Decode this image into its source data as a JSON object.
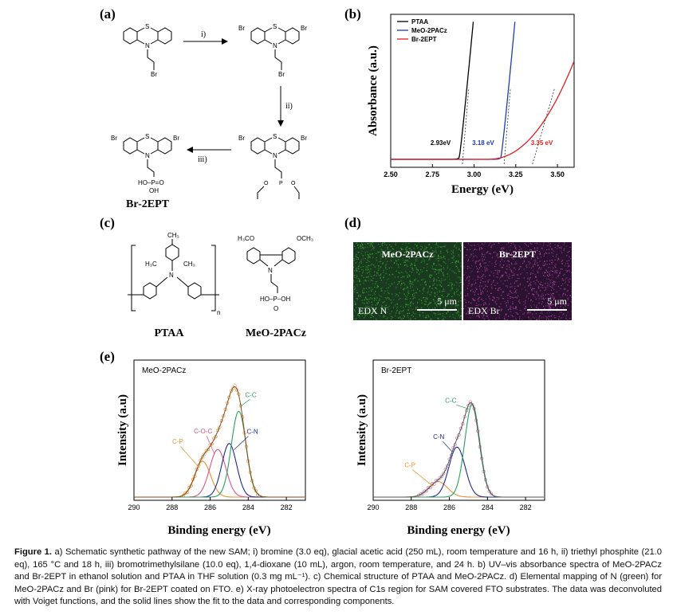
{
  "panels": {
    "a": "(a)",
    "b": "(b)",
    "c": "(c)",
    "d": "(d)",
    "e": "(e)"
  },
  "scheme": {
    "step1": "i)",
    "step2": "ii)",
    "step3": "iii)",
    "atom_s": "S",
    "atom_n": "N",
    "atom_br": "Br",
    "atom_o": "O",
    "atom_p": "P",
    "phosphonic_acid": "HO–P=O",
    "phosphonic_oh": "OH",
    "product_name": "Br-2EPT"
  },
  "structures": {
    "ptaa_name": "PTAA",
    "ptaa_ch3_top": "CH₃",
    "ptaa_h3c": "H₃C",
    "ptaa_ch3_right": "CH₃",
    "ptaa_n": "N",
    "ptaa_n_sub": "n",
    "meo_name": "MeO-2PACz",
    "meo_h3co": "H₃CO",
    "meo_och3": "OCH₃",
    "meo_n": "N",
    "meo_acid": "HO–P–OH",
    "meo_o": "O"
  },
  "edx": {
    "left_title": "MeO-2PACz",
    "left_label": "EDX N",
    "left_scale": "5 μm",
    "right_title": "Br-2EPT",
    "right_label": "EDX Br",
    "right_scale": "5 μm",
    "left_color": "#3fae3a",
    "right_color": "#b44aa8"
  },
  "chart_data": [
    {
      "type": "line",
      "panel": "b",
      "xlabel": "Energy (eV)",
      "ylabel": "Absorbance (a.u.)",
      "xlim": [
        2.5,
        3.6
      ],
      "xticks": [
        "2.50",
        "2.75",
        "3.00",
        "3.25",
        "3.50"
      ],
      "legend": "top-left",
      "series": [
        {
          "name": "PTAA",
          "color": "#000000",
          "onset": 2.93,
          "onset_label": "2.93eV"
        },
        {
          "name": "MeO-2PACz",
          "color": "#1f3fa8",
          "onset": 3.18,
          "onset_label": "3.18 eV"
        },
        {
          "name": "Br-2EPT",
          "color": "#e02020",
          "onset": 3.35,
          "onset_label": "3.35 eV"
        }
      ]
    },
    {
      "type": "line",
      "panel": "e-left",
      "title": "MeO-2PACz",
      "xlabel": "Binding energy (eV)",
      "ylabel": "Intensity (a.u)",
      "xlim": [
        290,
        281
      ],
      "xticks": [
        "290",
        "288",
        "286",
        "284",
        "282"
      ],
      "components": [
        {
          "name": "C-C",
          "center": 284.5,
          "height": 0.72,
          "width": 0.55,
          "color": "#2aa05a"
        },
        {
          "name": "C-N",
          "center": 285.0,
          "height": 0.45,
          "width": 0.55,
          "color": "#1e2a8c"
        },
        {
          "name": "C-O-C",
          "center": 285.6,
          "height": 0.4,
          "width": 0.6,
          "color": "#e0508a"
        },
        {
          "name": "C-P",
          "center": 286.4,
          "height": 0.3,
          "width": 0.6,
          "color": "#f0902a"
        }
      ]
    },
    {
      "type": "line",
      "panel": "e-right",
      "title": "Br-2EPT",
      "xlabel": "Binding energy (eV)",
      "ylabel": "Intensity (a.u)",
      "xlim": [
        290,
        281
      ],
      "xticks": [
        "290",
        "288",
        "286",
        "284",
        "282"
      ],
      "components": [
        {
          "name": "C-C",
          "center": 284.8,
          "height": 0.78,
          "width": 0.55,
          "color": "#2aa05a"
        },
        {
          "name": "C-N",
          "center": 285.6,
          "height": 0.42,
          "width": 0.6,
          "color": "#1e2a8c"
        },
        {
          "name": "C-P",
          "center": 286.6,
          "height": 0.13,
          "width": 0.7,
          "color": "#f0902a"
        }
      ]
    }
  ],
  "caption": {
    "label": "Figure 1.",
    "text": " a) Schematic synthetic pathway of the new SAM; i) bromine (3.0 eq), glacial acetic acid (250 mL), room temperature and 16 h, ii) triethyl phosphite (21.0 eq), 165 °C and 18 h, iii) bromotrimethylsilane (10.0 eq), 1,4-dioxane (10 mL), argon, room temperature, and 24 h. b) UV–vis absorbance spectra of MeO-2PACz and Br-2EPT in ethanol solution and PTAA in THF solution (0.3 mg mL⁻¹). c) Chemical structure of PTAA and MeO-2PACz. d) Elemental mapping of N (green) for MeO-2PACz and Br (pink) for Br-2EPT coated on FTO. e) X-ray photoelectron spectra of C1s region for SAM covered FTO substrates. The data was deconvoluted with Voiget functions, and the solid lines show the fit to the data and corresponding components."
  }
}
